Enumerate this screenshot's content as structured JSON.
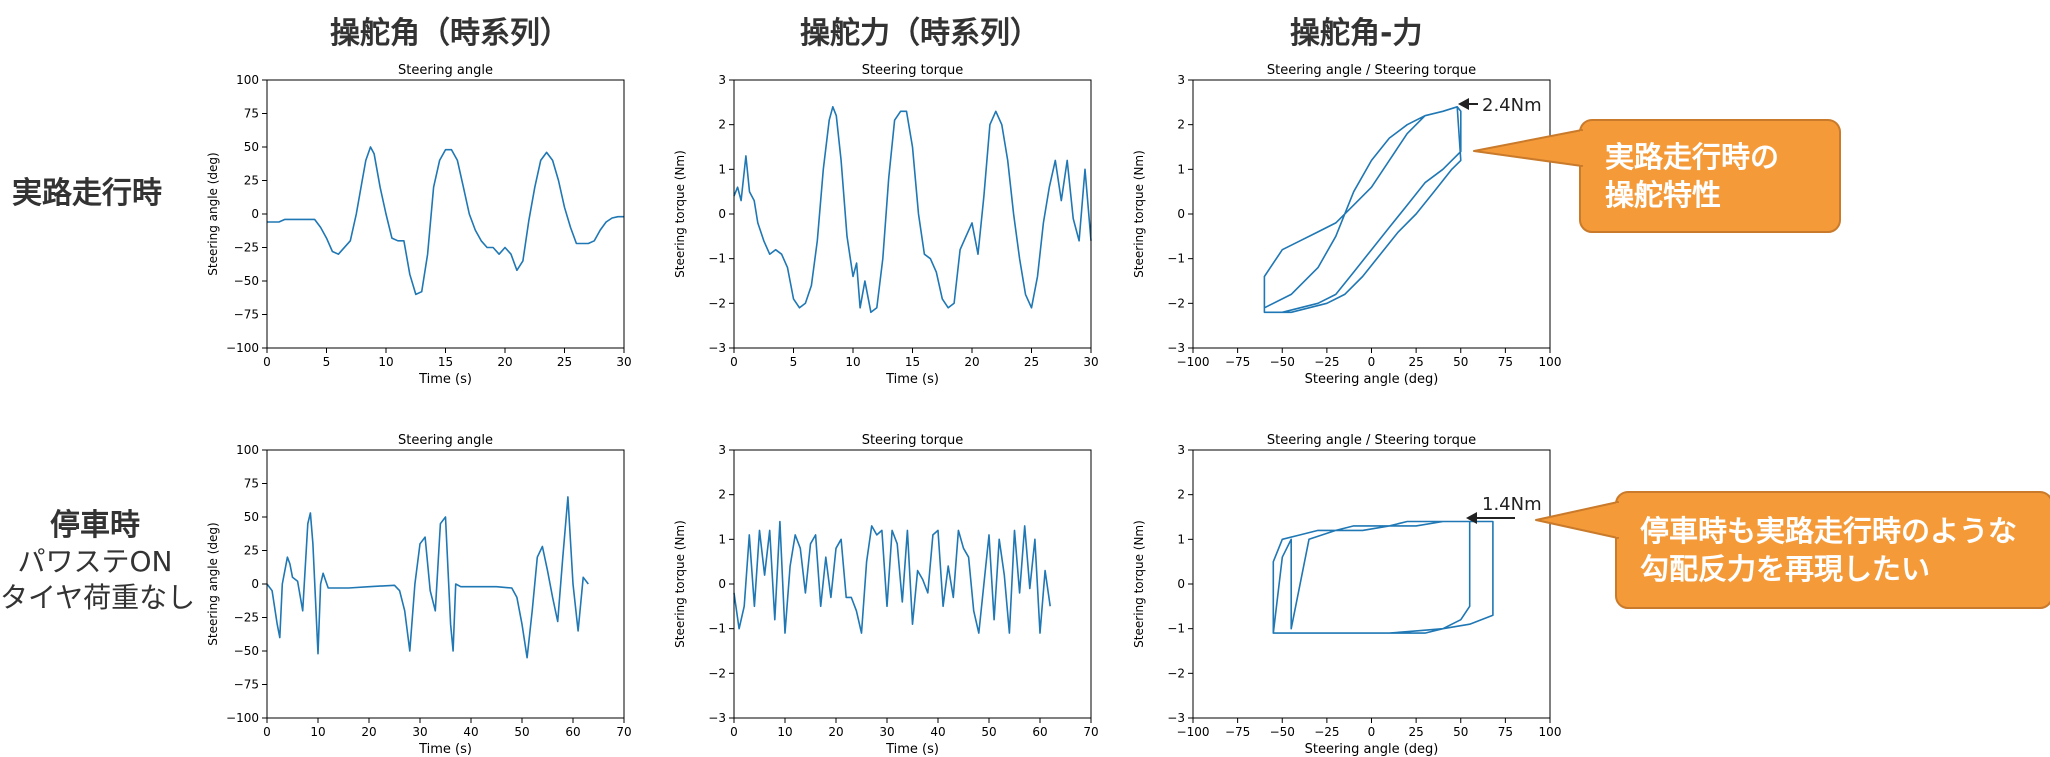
{
  "headings": {
    "col1": "操舵角（時系列）",
    "col2": "操舵力（時系列）",
    "col3": "操舵角-力"
  },
  "rows": {
    "row1": {
      "label": "実路走行時"
    },
    "row2": {
      "label": "停車時",
      "sub1": "パワステON",
      "sub2": "タイヤ荷重なし"
    }
  },
  "callouts": {
    "top": {
      "line1": "実路走行時の",
      "line2": "操舵特性"
    },
    "bottom": {
      "line1": "停車時も実路走行時のような",
      "line2": "勾配反力を再現したい"
    }
  },
  "annotations": {
    "top": "2.4Nm",
    "bottom": "1.4Nm"
  },
  "colors": {
    "line": "#1f77b4",
    "callout_fill": "#f59a38",
    "callout_edge": "#c97a2a",
    "heading": "#333333"
  },
  "chart_data": [
    {
      "id": "r1c1",
      "type": "line",
      "title": "Steering angle",
      "xlabel": "Time (s)",
      "ylabel": "Steering angle (deg)",
      "xlim": [
        0,
        30
      ],
      "ylim": [
        -100,
        100
      ],
      "xticks": [
        0,
        5,
        10,
        15,
        20,
        25,
        30
      ],
      "yticks": [
        -100,
        -75,
        -50,
        -25,
        0,
        25,
        50,
        75,
        100
      ],
      "series": [
        {
          "x": [
            0,
            1,
            1.5,
            2,
            3,
            4,
            4.5,
            5,
            5.5,
            6,
            7,
            7.5,
            8,
            8.3,
            8.7,
            9,
            9.5,
            10,
            10.5,
            11,
            11.5,
            12,
            12.5,
            13,
            13.5,
            14,
            14.5,
            15,
            15.5,
            16,
            16.5,
            17,
            17.5,
            18,
            18.5,
            19,
            19.5,
            20,
            20.5,
            21,
            21.5,
            22,
            22.5,
            23,
            23.5,
            24,
            24.5,
            25,
            25.5,
            26,
            26.5,
            27,
            27.5,
            28,
            28.5,
            29,
            29.5,
            30
          ],
          "y": [
            -6,
            -6,
            -4,
            -4,
            -4,
            -4,
            -10,
            -18,
            -28,
            -30,
            -20,
            0,
            25,
            40,
            50,
            45,
            20,
            0,
            -18,
            -20,
            -20,
            -45,
            -60,
            -58,
            -30,
            20,
            40,
            48,
            48,
            40,
            20,
            0,
            -12,
            -20,
            -25,
            -25,
            -30,
            -25,
            -30,
            -42,
            -35,
            -5,
            20,
            40,
            46,
            40,
            25,
            5,
            -10,
            -22,
            -22,
            -22,
            -20,
            -12,
            -6,
            -3,
            -2,
            -2
          ]
        }
      ]
    },
    {
      "id": "r1c2",
      "type": "line",
      "title": "Steering torque",
      "xlabel": "Time (s)",
      "ylabel": "Steering torque (Nm)",
      "xlim": [
        0,
        30
      ],
      "ylim": [
        -3,
        3
      ],
      "xticks": [
        0,
        5,
        10,
        15,
        20,
        25,
        30
      ],
      "yticks": [
        -3,
        -2,
        -1,
        0,
        1,
        2,
        3
      ],
      "series": [
        {
          "x": [
            0,
            0.3,
            0.6,
            1,
            1.3,
            1.7,
            2,
            2.5,
            3,
            3.5,
            4,
            4.5,
            5,
            5.5,
            6,
            6.5,
            7,
            7.5,
            8,
            8.3,
            8.6,
            9,
            9.5,
            10,
            10.3,
            10.6,
            11,
            11.5,
            12,
            12.5,
            13,
            13.5,
            14,
            14.5,
            15,
            15.5,
            16,
            16.5,
            17,
            17.5,
            18,
            18.5,
            19,
            19.5,
            20,
            20.5,
            21,
            21.5,
            22,
            22.5,
            23,
            23.5,
            24,
            24.5,
            25,
            25.5,
            26,
            26.5,
            27,
            27.5,
            28,
            28.5,
            29,
            29.5,
            30
          ],
          "y": [
            0.4,
            0.6,
            0.3,
            1.3,
            0.5,
            0.3,
            -0.2,
            -0.6,
            -0.9,
            -0.8,
            -0.9,
            -1.2,
            -1.9,
            -2.1,
            -2,
            -1.6,
            -0.6,
            1,
            2.1,
            2.4,
            2.2,
            1.2,
            -0.5,
            -1.4,
            -1.1,
            -2.1,
            -1.5,
            -2.2,
            -2.1,
            -1,
            0.8,
            2.1,
            2.3,
            2.3,
            1.5,
            0,
            -0.9,
            -1,
            -1.3,
            -1.9,
            -2.1,
            -2,
            -0.8,
            -0.5,
            -0.2,
            -0.9,
            0.4,
            2,
            2.3,
            2,
            1.2,
            0,
            -1,
            -1.8,
            -2.1,
            -1.4,
            -0.2,
            0.6,
            1.2,
            0.3,
            1.2,
            -0.1,
            -0.6,
            1,
            -0.6
          ]
        }
      ]
    },
    {
      "id": "r1c3",
      "type": "line",
      "title": "Steering angle / Steering torque",
      "xlabel": "Steering angle (deg)",
      "ylabel": "Steering torque (Nm)",
      "xlim": [
        -100,
        100
      ],
      "ylim": [
        -3,
        3
      ],
      "xticks": [
        -100,
        -75,
        -50,
        -25,
        0,
        25,
        50,
        75,
        100
      ],
      "yticks": [
        -3,
        -2,
        -1,
        0,
        1,
        2,
        3
      ],
      "series": [
        {
          "x": [
            -60,
            -60,
            -50,
            -40,
            -30,
            -20,
            -10,
            0,
            10,
            20,
            30,
            40,
            48,
            50,
            50,
            45,
            40,
            30,
            20,
            10,
            0,
            -10,
            -20,
            -30,
            -40,
            -50,
            -60,
            -60,
            -45,
            -30,
            -20,
            -10,
            0,
            10,
            20,
            30,
            40,
            48,
            50,
            45,
            35,
            25,
            15,
            5,
            -5,
            -15,
            -25,
            -35,
            -45,
            -55,
            -60
          ],
          "y": [
            -2.2,
            -1.4,
            -0.8,
            -0.6,
            -0.4,
            -0.2,
            0.2,
            0.6,
            1.2,
            1.8,
            2.2,
            2.3,
            2.4,
            2.3,
            1.4,
            1.2,
            1,
            0.7,
            0.2,
            -0.3,
            -0.8,
            -1.3,
            -1.8,
            -2,
            -2.1,
            -2.2,
            -2.2,
            -2.1,
            -1.8,
            -1.2,
            -0.5,
            0.5,
            1.2,
            1.7,
            2,
            2.2,
            2.3,
            2.4,
            1.2,
            1,
            0.5,
            0,
            -0.4,
            -0.9,
            -1.4,
            -1.8,
            -2,
            -2.1,
            -2.2,
            -2.2,
            -2.2
          ]
        }
      ]
    },
    {
      "id": "r2c1",
      "type": "line",
      "title": "Steering angle",
      "xlabel": "Time (s)",
      "ylabel": "Steering angle (deg)",
      "xlim": [
        0,
        70
      ],
      "ylim": [
        -100,
        100
      ],
      "xticks": [
        0,
        10,
        20,
        30,
        40,
        50,
        60,
        70
      ],
      "yticks": [
        -100,
        -75,
        -50,
        -25,
        0,
        25,
        50,
        75,
        100
      ],
      "series": [
        {
          "x": [
            0,
            1,
            2,
            2.5,
            3,
            4,
            4.5,
            5,
            6,
            7,
            8,
            8.5,
            9,
            10,
            10.5,
            11,
            12,
            14,
            16,
            20,
            25,
            26,
            27,
            28,
            29,
            30,
            31,
            32,
            33,
            34,
            35,
            36,
            36.5,
            37,
            38,
            40,
            45,
            48,
            49,
            50,
            51,
            52,
            53,
            54,
            55,
            56,
            57,
            58,
            59,
            60,
            61,
            62,
            63
          ],
          "y": [
            0,
            -5,
            -30,
            -40,
            0,
            20,
            15,
            5,
            2,
            -20,
            45,
            53,
            30,
            -52,
            0,
            8,
            -3,
            -3,
            -3,
            -2,
            -1,
            -5,
            -20,
            -50,
            0,
            30,
            35,
            -5,
            -20,
            45,
            50,
            -30,
            -50,
            0,
            -2,
            -2,
            -2,
            -3,
            -10,
            -30,
            -55,
            -20,
            20,
            28,
            10,
            -10,
            -28,
            20,
            65,
            0,
            -35,
            5,
            0
          ]
        }
      ]
    },
    {
      "id": "r2c2",
      "type": "line",
      "title": "Steering torque",
      "xlabel": "Time (s)",
      "ylabel": "Steering torque (Nm)",
      "xlim": [
        0,
        70
      ],
      "ylim": [
        -3,
        3
      ],
      "xticks": [
        0,
        10,
        20,
        30,
        40,
        50,
        60,
        70
      ],
      "yticks": [
        -3,
        -2,
        -1,
        0,
        1,
        2,
        3
      ],
      "series": [
        {
          "x": [
            0,
            1,
            2,
            3,
            4,
            5,
            6,
            7,
            8,
            9,
            10,
            11,
            12,
            13,
            14,
            15,
            16,
            17,
            18,
            19,
            20,
            21,
            22,
            23,
            24,
            25,
            26,
            27,
            28,
            29,
            30,
            31,
            32,
            33,
            34,
            35,
            36,
            37,
            38,
            39,
            40,
            41,
            42,
            43,
            44,
            45,
            46,
            47,
            48,
            49,
            50,
            51,
            52,
            53,
            54,
            55,
            56,
            57,
            58,
            59,
            60,
            61,
            62
          ],
          "y": [
            -0.2,
            -1,
            -0.5,
            1.1,
            -0.5,
            1.2,
            0.2,
            1.2,
            -0.8,
            1.4,
            -1.1,
            0.4,
            1.1,
            0.8,
            -0.2,
            0.9,
            1.1,
            -0.5,
            0.6,
            -0.3,
            0.8,
            1,
            -0.3,
            -0.3,
            -0.6,
            -1.1,
            0.5,
            1.3,
            1.1,
            1.2,
            -0.5,
            1.2,
            0.9,
            -0.4,
            1.2,
            -0.9,
            0.3,
            0.1,
            -0.2,
            1.1,
            1.2,
            -0.5,
            0.4,
            -0.3,
            1.2,
            0.8,
            0.6,
            -0.6,
            -1.1,
            0,
            1.1,
            -0.8,
            1,
            0.2,
            -1.1,
            1.2,
            -0.2,
            1.3,
            -0.1,
            1,
            -1.1,
            0.3,
            -0.5
          ]
        }
      ]
    },
    {
      "id": "r2c3",
      "type": "line",
      "title": "Steering angle / Steering torque",
      "xlabel": "Steering angle (deg)",
      "ylabel": "Steering torque (Nm)",
      "xlim": [
        -100,
        100
      ],
      "ylim": [
        -3,
        3
      ],
      "xticks": [
        -100,
        -75,
        -50,
        -25,
        0,
        25,
        50,
        75,
        100
      ],
      "yticks": [
        -3,
        -2,
        -1,
        0,
        1,
        2,
        3
      ],
      "series": [
        {
          "x": [
            -55,
            -55,
            -50,
            -40,
            -30,
            -20,
            -10,
            0,
            10,
            20,
            30,
            40,
            50,
            55,
            55,
            50,
            40,
            30,
            20,
            10,
            0,
            -10,
            -20,
            -30,
            -40,
            -50,
            -55,
            -50,
            -45,
            -45,
            -35,
            -20,
            -5,
            10,
            25,
            40,
            55,
            68,
            68,
            55,
            40,
            25,
            10,
            -5,
            -20,
            -35,
            -45
          ],
          "y": [
            -1.1,
            0.5,
            1,
            1.1,
            1.2,
            1.2,
            1.3,
            1.3,
            1.3,
            1.4,
            1.4,
            1.4,
            1.4,
            1.4,
            -0.5,
            -0.8,
            -1,
            -1.1,
            -1.1,
            -1.1,
            -1.1,
            -1.1,
            -1.1,
            -1.1,
            -1.1,
            -1.1,
            -1.1,
            0.6,
            1,
            -1,
            1,
            1.2,
            1.2,
            1.3,
            1.3,
            1.4,
            1.4,
            1.4,
            -0.7,
            -0.9,
            -1,
            -1.05,
            -1.1,
            -1.1,
            -1.1,
            -1.1,
            -1.1
          ]
        }
      ]
    }
  ]
}
